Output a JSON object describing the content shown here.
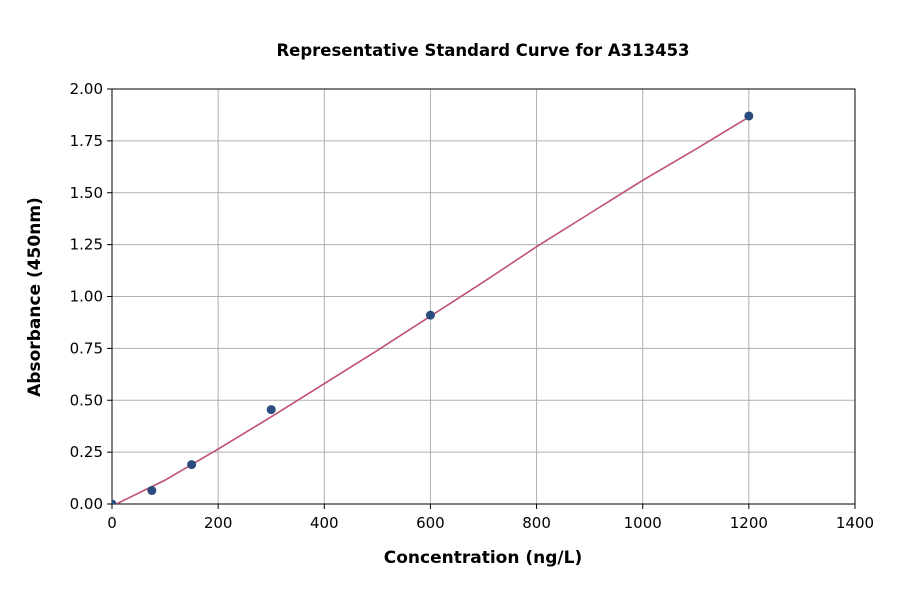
{
  "chart_data": {
    "type": "scatter",
    "title": "Representative Standard Curve for A313453",
    "x_label": "Concentration (ng/L)",
    "y_label": "Absorbance (450nm)",
    "x": [
      0,
      75,
      150,
      300,
      600,
      1200
    ],
    "values": [
      0,
      0.065,
      0.19,
      0.455,
      0.91,
      1.87
    ],
    "color": "#2b4c7e",
    "fit": {
      "x": [
        0,
        100,
        200,
        300,
        400,
        500,
        600,
        700,
        800,
        900,
        1000,
        1100,
        1200
      ],
      "values": [
        -0.01,
        0.115,
        0.265,
        0.42,
        0.58,
        0.74,
        0.905,
        1.07,
        1.24,
        1.4,
        1.56,
        1.71,
        1.865
      ],
      "color": "#c0506e"
    },
    "xlim": [
      0,
      1400
    ],
    "xticks": [
      0,
      200,
      400,
      600,
      800,
      1000,
      1200,
      1400
    ],
    "ylim": [
      0,
      2
    ],
    "yticks": [
      {
        "value": 0,
        "label": "0.00"
      },
      {
        "value": 0.25,
        "label": "0.25"
      },
      {
        "value": 0.5,
        "label": "0.50"
      },
      {
        "value": 0.75,
        "label": "0.75"
      },
      {
        "value": 1,
        "label": "1.00"
      },
      {
        "value": 1.25,
        "label": "1.25"
      },
      {
        "value": 1.5,
        "label": "1.50"
      },
      {
        "value": 1.75,
        "label": "1.75"
      },
      {
        "value": 2,
        "label": "2.00"
      }
    ],
    "grid": true
  }
}
